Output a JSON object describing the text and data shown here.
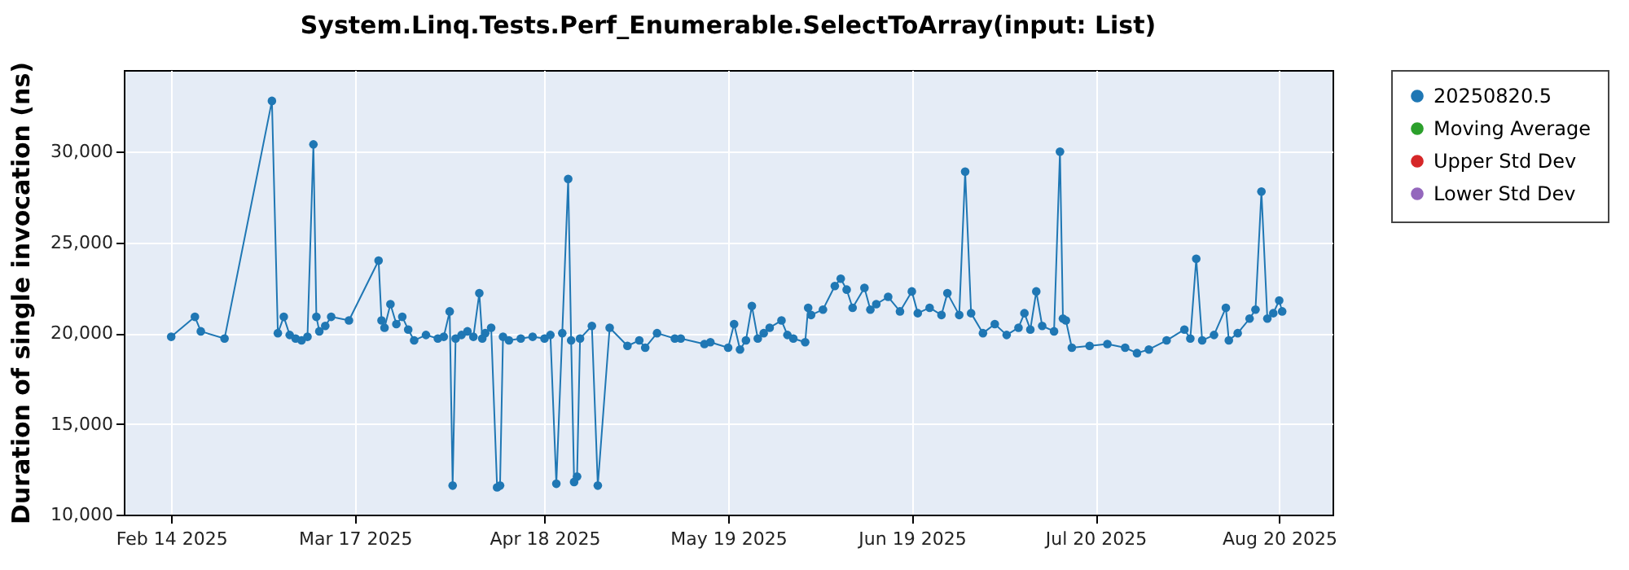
{
  "chart_data": {
    "type": "line",
    "title": "System.Linq.Tests.Perf_Enumerable.SelectToArray(input: List)",
    "ylabel": "Duration of single invocation (ns)",
    "marker": "circle",
    "grid": true,
    "legend": "right",
    "xlim": [
      "2025-02-06",
      "2025-08-29"
    ],
    "ylim": [
      10000,
      34500
    ],
    "xticks": [
      {
        "value": "2025-02-14",
        "label": "Feb 14 2025"
      },
      {
        "value": "2025-03-17",
        "label": "Mar 17 2025"
      },
      {
        "value": "2025-04-18",
        "label": "Apr 18 2025"
      },
      {
        "value": "2025-05-19",
        "label": "May 19 2025"
      },
      {
        "value": "2025-06-19",
        "label": "Jun 19 2025"
      },
      {
        "value": "2025-07-20",
        "label": "Jul 20 2025"
      },
      {
        "value": "2025-08-20",
        "label": "Aug 20 2025"
      }
    ],
    "yticks": [
      {
        "value": 10000,
        "label": "10,000"
      },
      {
        "value": 15000,
        "label": "15,000"
      },
      {
        "value": 20000,
        "label": "20,000"
      },
      {
        "value": 25000,
        "label": "25,000"
      },
      {
        "value": 30000,
        "label": "30,000"
      }
    ],
    "series": [
      {
        "name": "20250820.5",
        "color": "#1f77b4",
        "x": [
          "2025-02-14",
          "2025-02-18",
          "2025-02-19",
          "2025-02-23",
          "2025-03-03",
          "2025-03-04",
          "2025-03-05",
          "2025-03-06",
          "2025-03-07",
          "2025-03-08",
          "2025-03-09",
          "2025-03-10",
          "2025-03-10T12:00",
          "2025-03-11",
          "2025-03-12",
          "2025-03-13",
          "2025-03-16",
          "2025-03-21",
          "2025-03-21T12:00",
          "2025-03-22",
          "2025-03-23",
          "2025-03-24",
          "2025-03-25",
          "2025-03-26",
          "2025-03-27",
          "2025-03-29",
          "2025-03-31",
          "2025-04-01",
          "2025-04-02",
          "2025-04-02T12:00",
          "2025-04-03",
          "2025-04-04",
          "2025-04-05",
          "2025-04-06",
          "2025-04-07",
          "2025-04-07T12:00",
          "2025-04-08",
          "2025-04-09",
          "2025-04-10",
          "2025-04-10T12:00",
          "2025-04-11",
          "2025-04-12",
          "2025-04-14",
          "2025-04-16",
          "2025-04-18",
          "2025-04-19",
          "2025-04-20",
          "2025-04-21",
          "2025-04-22",
          "2025-04-22T12:00",
          "2025-04-23",
          "2025-04-23T12:00",
          "2025-04-24",
          "2025-04-26",
          "2025-04-27",
          "2025-04-29",
          "2025-05-02",
          "2025-05-04",
          "2025-05-05",
          "2025-05-07",
          "2025-05-10",
          "2025-05-11",
          "2025-05-15",
          "2025-05-16",
          "2025-05-19",
          "2025-05-20",
          "2025-05-21",
          "2025-05-22",
          "2025-05-23",
          "2025-05-24",
          "2025-05-25",
          "2025-05-26",
          "2025-05-28",
          "2025-05-29",
          "2025-05-30",
          "2025-06-01",
          "2025-06-01T12:00",
          "2025-06-02",
          "2025-06-04",
          "2025-06-06",
          "2025-06-07",
          "2025-06-08",
          "2025-06-09",
          "2025-06-11",
          "2025-06-12",
          "2025-06-13",
          "2025-06-15",
          "2025-06-17",
          "2025-06-19",
          "2025-06-20",
          "2025-06-22",
          "2025-06-24",
          "2025-06-25",
          "2025-06-27",
          "2025-06-28",
          "2025-06-29",
          "2025-07-01",
          "2025-07-03",
          "2025-07-05",
          "2025-07-07",
          "2025-07-08",
          "2025-07-09",
          "2025-07-10",
          "2025-07-11",
          "2025-07-13",
          "2025-07-14",
          "2025-07-14T12:00",
          "2025-07-15",
          "2025-07-16",
          "2025-07-19",
          "2025-07-22",
          "2025-07-25",
          "2025-07-27",
          "2025-07-29",
          "2025-08-01",
          "2025-08-04",
          "2025-08-05",
          "2025-08-06",
          "2025-08-07",
          "2025-08-09",
          "2025-08-11",
          "2025-08-11T12:00",
          "2025-08-13",
          "2025-08-15",
          "2025-08-16",
          "2025-08-17",
          "2025-08-18",
          "2025-08-19",
          "2025-08-20",
          "2025-08-20T12:00"
        ],
        "values": [
          19800,
          20900,
          20100,
          19700,
          32800,
          20000,
          20900,
          19900,
          19700,
          19600,
          19800,
          30400,
          20900,
          20100,
          20400,
          20900,
          20700,
          24000,
          20700,
          20300,
          21600,
          20500,
          20900,
          20200,
          19600,
          19900,
          19700,
          19800,
          21200,
          11600,
          19700,
          19900,
          20100,
          19800,
          22200,
          19700,
          20000,
          20300,
          11500,
          11600,
          19800,
          19600,
          19700,
          19800,
          19700,
          19900,
          11700,
          20000,
          28500,
          19600,
          11800,
          12100,
          19700,
          20400,
          11600,
          20300,
          19300,
          19600,
          19200,
          20000,
          19700,
          19700,
          19400,
          19500,
          19200,
          20500,
          19100,
          19600,
          21500,
          19700,
          20000,
          20300,
          20700,
          19900,
          19700,
          19500,
          21400,
          21000,
          21300,
          22600,
          23000,
          22400,
          21400,
          22500,
          21300,
          21600,
          22000,
          21200,
          22300,
          21100,
          21400,
          21000,
          22200,
          21000,
          28900,
          21100,
          20000,
          20500,
          19900,
          20300,
          21100,
          20200,
          22300,
          20400,
          20100,
          30000,
          20800,
          20700,
          19200,
          19300,
          19400,
          19200,
          18900,
          19100,
          19600,
          20200,
          19700,
          24100,
          19600,
          19900,
          21400,
          19600,
          20000,
          20800,
          21300,
          27800,
          20800,
          21100,
          21800,
          21200
        ]
      },
      {
        "name": "Moving Average",
        "color": "#2ca02c"
      },
      {
        "name": "Upper Std Dev",
        "color": "#d62728"
      },
      {
        "name": "Lower Std Dev",
        "color": "#9467bd"
      }
    ]
  }
}
